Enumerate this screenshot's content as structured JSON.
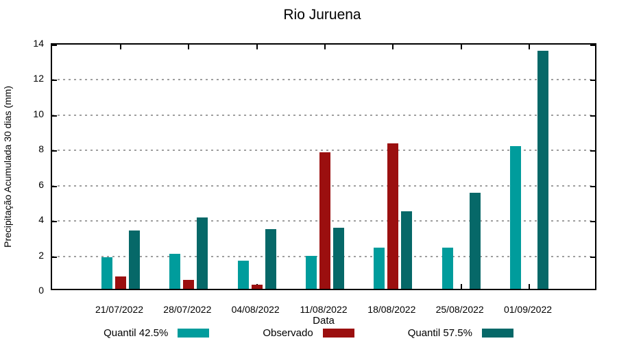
{
  "chart_data": {
    "type": "bar",
    "title": "Rio Juruena",
    "xlabel": "Data",
    "ylabel": "Precipitação Acumulada 30 dias (mm)",
    "categories": [
      "21/07/2022",
      "28/07/2022",
      "04/08/2022",
      "11/08/2022",
      "18/08/2022",
      "25/08/2022",
      "01/09/2022"
    ],
    "series": [
      {
        "name": "Quantil 42.5%",
        "color": "#009C9C",
        "values": [
          1.8,
          2.0,
          1.6,
          1.85,
          2.35,
          2.35,
          8.1
        ]
      },
      {
        "name": "Observado",
        "color": "#9B0F0F",
        "values": [
          0.7,
          0.5,
          0.25,
          7.75,
          8.25,
          null,
          null
        ]
      },
      {
        "name": "Quantil 57.5%",
        "color": "#066868",
        "values": [
          3.3,
          4.05,
          3.4,
          3.45,
          4.4,
          5.45,
          13.5
        ]
      }
    ],
    "ylim": [
      0,
      14
    ],
    "ytick_step": 2,
    "grid": "dotted horizontal",
    "legend_position": "bottom",
    "frame_color": "#000000",
    "grid_color": "#9e9e9e"
  }
}
